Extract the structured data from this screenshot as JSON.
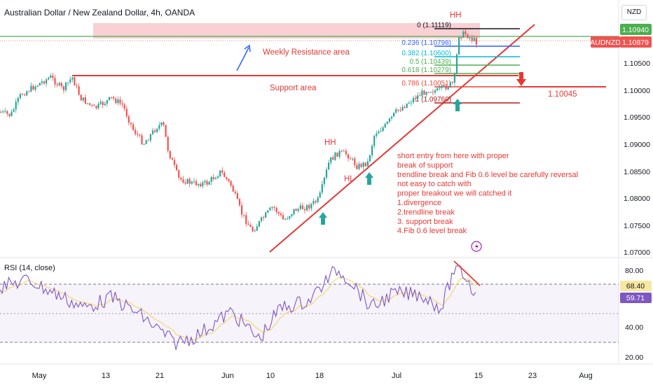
{
  "header": {
    "title": "Australian Dollar / New Zealand Dollar, 4h, OANDA",
    "currency": "NZD"
  },
  "price_axis": {
    "ticks": [
      "1.10500",
      "1.10000",
      "1.09500",
      "1.09000",
      "1.08500",
      "1.08000",
      "1.07500",
      "1.07000"
    ],
    "current_price_label": "1.10940",
    "symbol_label": "AUDNZD",
    "symbol_price": "1.10879"
  },
  "rsi": {
    "title": "RSI (14, close)",
    "ticks": [
      "80.00",
      "40.00",
      "20.00"
    ],
    "value_yellow": "68.40",
    "value_purple": "59.71",
    "bands": [
      70,
      50,
      30
    ]
  },
  "time_axis": [
    "May",
    "13",
    "21",
    "Jun",
    "10",
    "18",
    "Jul",
    "15",
    "23",
    "Aug"
  ],
  "annotations": {
    "weekly_resistance": "Weekly Resistance area",
    "support_area": "Support area",
    "support_price": "1.10045",
    "hh_top": "HH",
    "hh_mid": "HH",
    "hl_mid": "HL",
    "note_lines": [
      "short entry from here with proper",
      " break of support",
      "trendline break and Fib 0.6 level be carefully reversal",
      "not easy to catch with",
      "proper breakout we  will catched it",
      "1.divergence",
      "2.trendline break",
      "3. support break",
      "4.Fib 0.6 level break"
    ]
  },
  "fib_levels": [
    {
      "label": "0 (1.11119)",
      "color": "#131722"
    },
    {
      "label": "0.236 (1.10798)",
      "color": "#2962ff"
    },
    {
      "label": "0.382 (1.10600)",
      "color": "#00bcd4"
    },
    {
      "label": "0.5 (1.10439)",
      "color": "#4caf50"
    },
    {
      "label": "0.618 (1.10279)",
      "color": "#4caf50"
    },
    {
      "label": "0.786 (1.10051)",
      "color": "#f44336"
    },
    {
      "label": "1 (1.09760)",
      "color": "#b71c1c"
    }
  ],
  "colors": {
    "up": "#26a69a",
    "down": "#ef5350",
    "annotation_red": "#e53935",
    "green_line": "#4caf50",
    "rsi_line": "#7e57c2",
    "rsi_ma": "#f5d76e",
    "resistance_fill": "#f8c8cc"
  }
}
